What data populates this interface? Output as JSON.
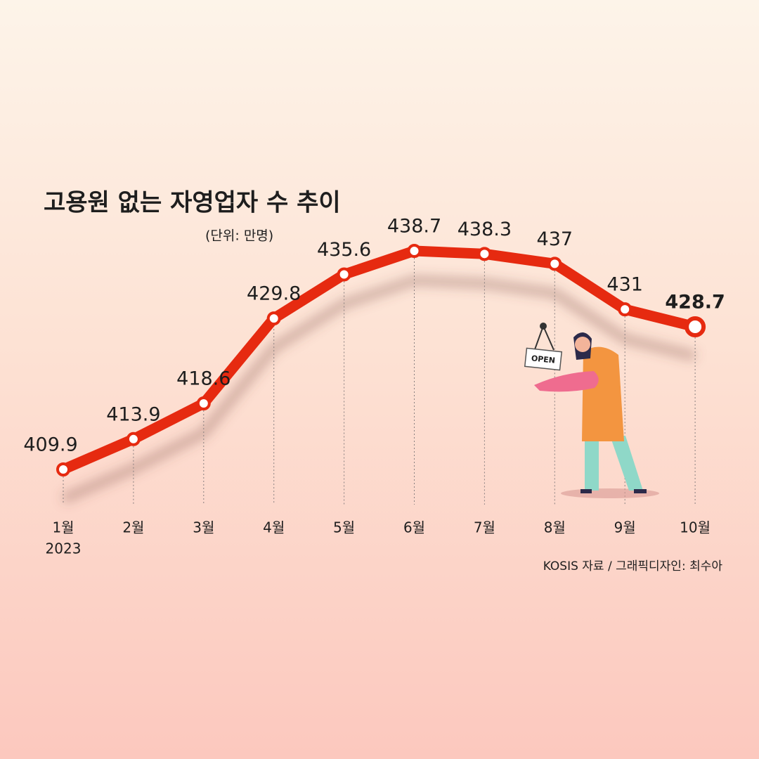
{
  "chart_data": {
    "type": "line",
    "title": "고용원 없는 자영업자 수 추이",
    "subtitle": "(단위: 만명)",
    "categories": [
      "1월",
      "2월",
      "3월",
      "4월",
      "5월",
      "6월",
      "7월",
      "8월",
      "9월",
      "10월"
    ],
    "year": "2023",
    "values": [
      409.9,
      413.9,
      418.6,
      429.8,
      435.6,
      438.7,
      438.3,
      437,
      431,
      428.7
    ],
    "color": "#e62a10",
    "sign_text": "OPEN",
    "source": "KOSIS 자료 / 그래픽디자인: 최수아"
  }
}
